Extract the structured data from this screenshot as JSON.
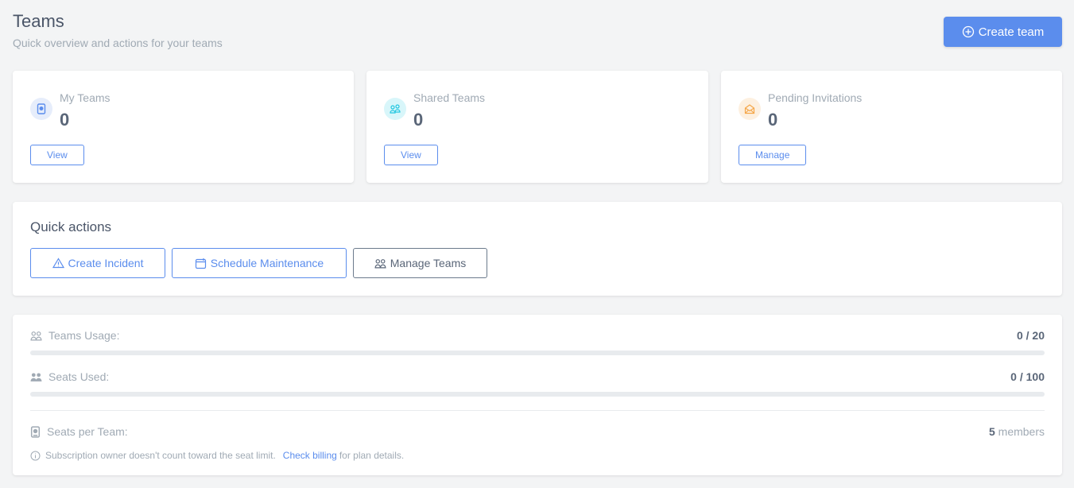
{
  "header": {
    "title": "Teams",
    "subtitle": "Quick overview and actions for your teams",
    "create_label": "Create team"
  },
  "stats": [
    {
      "label": "My Teams",
      "value": "0",
      "button": "View",
      "icon": "id-badge-icon",
      "color": "#5b8ded",
      "bg": "#e6edfb"
    },
    {
      "label": "Shared Teams",
      "value": "0",
      "button": "View",
      "icon": "users-icon",
      "color": "#22c7e0",
      "bg": "#d8f6fa"
    },
    {
      "label": "Pending Invitations",
      "value": "0",
      "button": "Manage",
      "icon": "envelope-open-icon",
      "color": "#f5a74a",
      "bg": "#fdf0e0"
    }
  ],
  "quick_actions": {
    "title": "Quick actions",
    "items": [
      {
        "label": "Create Incident",
        "icon": "warning-icon"
      },
      {
        "label": "Schedule Maintenance",
        "icon": "calendar-icon"
      },
      {
        "label": "Manage Teams",
        "icon": "users-icon"
      }
    ]
  },
  "usage": {
    "teams": {
      "label": "Teams Usage:",
      "value": "0 / 20",
      "percent": 0
    },
    "seats": {
      "label": "Seats Used:",
      "value": "0 / 100",
      "percent": 0
    },
    "per_team": {
      "label": "Seats per Team:",
      "count": "5",
      "unit": " members"
    },
    "note": {
      "text": "Subscription owner doesn't count toward the seat limit.",
      "link": "Check billing",
      "suffix": "for plan details."
    }
  },
  "colors": {
    "accent": "#5b8ded",
    "background": "#f3f4f5"
  }
}
